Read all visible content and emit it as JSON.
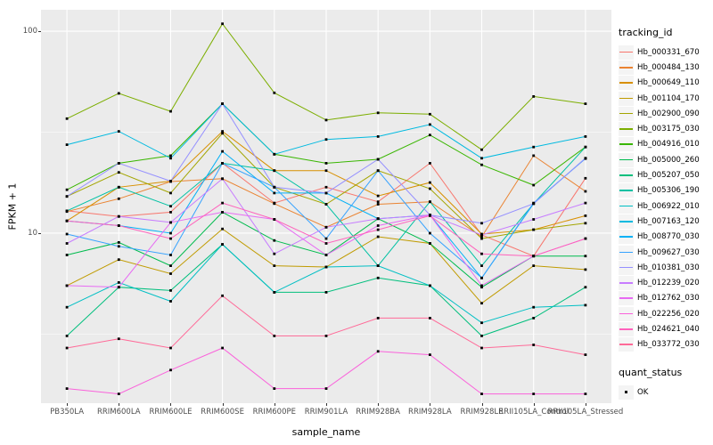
{
  "chart_data": {
    "type": "line",
    "title": "",
    "xlabel": "sample_name",
    "ylabel": "FPKM + 1",
    "y_scale": "log10",
    "ylim": [
      1.44,
      127.6
    ],
    "yticks": [
      {
        "value": 10,
        "label": "10"
      },
      {
        "value": 100,
        "label": "100"
      }
    ],
    "minor_gridlines": [
      3.162,
      31.62
    ],
    "grid": true,
    "panel_bg": "#EBEBEB",
    "gridline_color": "#FFFFFF",
    "point_shape": "filled-square",
    "point_color": "#000000",
    "legend_position": "right",
    "x_categories": [
      "PB350LA",
      "RRIM600LA",
      "RRIM600LE",
      "RRIM600SE",
      "RRIM600PE",
      "RRIM901LA",
      "RRIM928BA",
      "RRIM928LA",
      "RRIM928LE",
      "RRII105LA_Control",
      "RRII105LA_Stressed"
    ],
    "legends": {
      "tracking_id": {
        "title": "tracking_id"
      },
      "quant_status": {
        "title": "quant_status",
        "items": [
          {
            "label": "OK",
            "symbol": "filled-square",
            "color": "#000000"
          }
        ]
      }
    },
    "series": [
      {
        "name": "Hb_000331_670",
        "color": "#F8766D",
        "values": [
          12.9,
          12.1,
          12.7,
          22.2,
          14.1,
          16.9,
          14.3,
          22.2,
          9.8,
          7.7,
          18.7
        ]
      },
      {
        "name": "Hb_000484_130",
        "color": "#EA8331",
        "values": [
          12.8,
          14.8,
          18.0,
          18.6,
          14.0,
          10.7,
          13.9,
          14.3,
          9.6,
          24.2,
          16.1
        ]
      },
      {
        "name": "Hb_000649_110",
        "color": "#D89000",
        "values": [
          11.5,
          16.9,
          18.1,
          31.9,
          20.4,
          20.4,
          15.3,
          17.8,
          9.9,
          10.4,
          12.2
        ]
      },
      {
        "name": "Hb_001104_170",
        "color": "#C09B00",
        "values": [
          5.5,
          7.4,
          6.3,
          10.5,
          6.9,
          6.8,
          9.6,
          8.9,
          4.5,
          6.9,
          6.6
        ]
      },
      {
        "name": "Hb_002900_090",
        "color": "#A3A500",
        "values": [
          15.2,
          20.0,
          15.8,
          31.2,
          16.9,
          13.9,
          20.4,
          16.6,
          9.4,
          10.4,
          11.2
        ]
      },
      {
        "name": "Hb_003175_030",
        "color": "#7CAE00",
        "values": [
          36.9,
          49.2,
          40.1,
          108.8,
          49.5,
          36.3,
          39.4,
          38.8,
          25.9,
          47.5,
          43.7
        ]
      },
      {
        "name": "Hb_004916_010",
        "color": "#39B600",
        "values": [
          16.4,
          22.2,
          24.2,
          43.7,
          24.6,
          22.2,
          23.2,
          30.6,
          21.8,
          17.3,
          26.7
        ]
      },
      {
        "name": "Hb_005000_260",
        "color": "#00BB4E",
        "values": [
          7.8,
          9.0,
          6.9,
          12.7,
          9.2,
          7.8,
          11.8,
          8.9,
          5.4,
          7.7,
          7.7
        ]
      },
      {
        "name": "Hb_005207_050",
        "color": "#00BF7D",
        "values": [
          3.1,
          5.4,
          5.2,
          8.8,
          5.1,
          5.1,
          6.0,
          5.5,
          3.1,
          3.8,
          5.4
        ]
      },
      {
        "name": "Hb_005306_190",
        "color": "#00C1A3",
        "values": [
          12.9,
          16.9,
          13.6,
          22.2,
          20.4,
          13.9,
          6.9,
          14.3,
          6.9,
          14.0,
          26.7
        ]
      },
      {
        "name": "Hb_006922_010",
        "color": "#00BFC4",
        "values": [
          4.3,
          5.7,
          4.6,
          8.8,
          5.1,
          6.8,
          6.9,
          5.5,
          3.6,
          4.3,
          4.4
        ]
      },
      {
        "name": "Hb_007163_120",
        "color": "#00BAE0",
        "values": [
          27.4,
          31.9,
          23.5,
          43.7,
          24.6,
          29.1,
          30.1,
          34.5,
          23.5,
          26.7,
          30.1
        ]
      },
      {
        "name": "Hb_008770_030",
        "color": "#00B0F6",
        "values": [
          11.5,
          10.9,
          10.0,
          25.4,
          15.8,
          15.8,
          11.8,
          12.3,
          6.0,
          14.0,
          23.5
        ]
      },
      {
        "name": "Hb_009627_030",
        "color": "#35A2FF",
        "values": [
          9.9,
          8.6,
          7.8,
          22.2,
          16.9,
          9.4,
          20.4,
          10.0,
          6.0,
          14.1,
          23.4
        ]
      },
      {
        "name": "Hb_010381_030",
        "color": "#9590FF",
        "values": [
          15.2,
          22.2,
          18.1,
          43.7,
          16.9,
          15.8,
          23.2,
          12.3,
          11.2,
          14.0,
          23.5
        ]
      },
      {
        "name": "Hb_012239_020",
        "color": "#C77CFF",
        "values": [
          8.9,
          12.1,
          11.3,
          18.6,
          7.9,
          10.7,
          11.8,
          12.3,
          9.8,
          11.7,
          14.1
        ]
      },
      {
        "name": "Hb_012762_030",
        "color": "#E76BF3",
        "values": [
          5.5,
          5.4,
          11.3,
          12.7,
          11.7,
          7.8,
          10.9,
          12.3,
          5.5,
          7.7,
          9.4
        ]
      },
      {
        "name": "Hb_022256_020",
        "color": "#FA62DB",
        "values": [
          1.7,
          1.6,
          2.1,
          2.7,
          1.7,
          1.7,
          2.6,
          2.5,
          1.6,
          1.6,
          1.6
        ]
      },
      {
        "name": "Hb_024621_040",
        "color": "#FF62BC",
        "values": [
          11.5,
          10.9,
          9.4,
          14.1,
          11.7,
          8.9,
          10.4,
          12.2,
          7.9,
          7.7,
          9.4
        ]
      },
      {
        "name": "Hb_033772_030",
        "color": "#FF6A98",
        "values": [
          2.7,
          3.0,
          2.7,
          4.9,
          3.1,
          3.1,
          3.8,
          3.8,
          2.7,
          2.8,
          2.5
        ]
      }
    ]
  }
}
